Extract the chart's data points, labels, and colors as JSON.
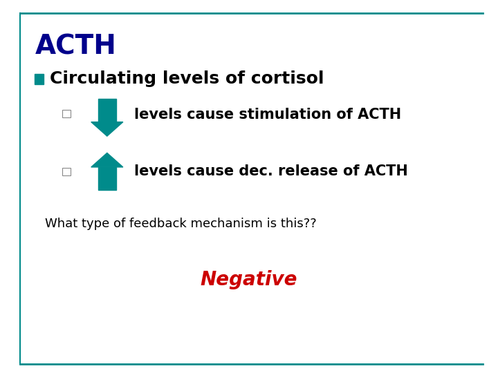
{
  "title": "ACTH",
  "title_color": "#00008B",
  "title_fontsize": 28,
  "bullet1": "Circulating levels of cortisol",
  "bullet1_fontsize": 18,
  "bullet1_color": "#000000",
  "sub1_text": "levels cause stimulation of ACTH",
  "sub2_text": "levels cause dec. release of ACTH",
  "sub_fontsize": 15,
  "sub_color": "#000000",
  "arrow_color": "#008B8B",
  "feedback_text": "What type of feedback mechanism is this??",
  "feedback_fontsize": 13,
  "feedback_color": "#000000",
  "negative_text": "Negative",
  "negative_fontsize": 20,
  "negative_color": "#CC0000",
  "border_color": "#008B8B",
  "bg_color": "#FFFFFF",
  "bullet_square_color": "#008B8B",
  "sub_square_color": "#888888"
}
